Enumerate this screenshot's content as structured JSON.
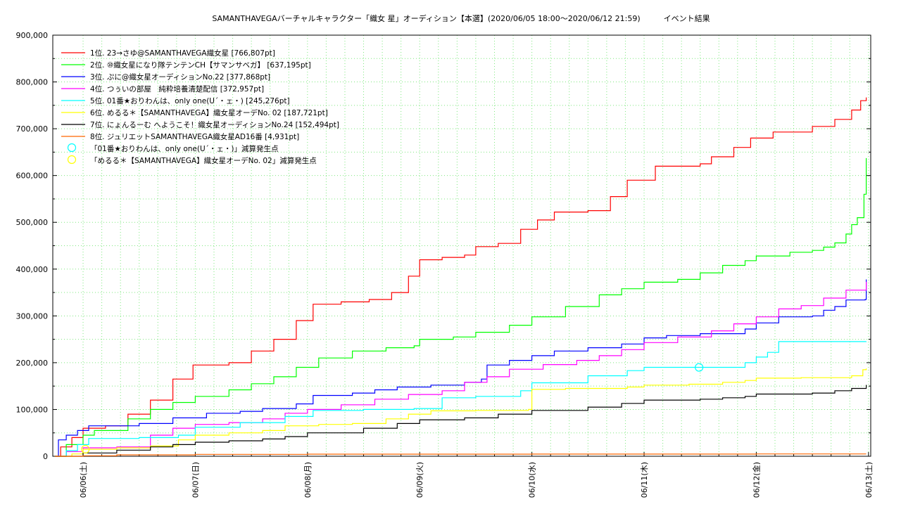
{
  "chart_data": {
    "type": "line",
    "title": "SAMANTHAVEGAバーチャルキャラクター「織女 星」オーディション【本選】(2020/06/05 18:00〜2020/06/12 21:59)　　　イベント結果",
    "xlabel": "",
    "ylabel": "",
    "x_unit": "days since 2020/06/05 00:00",
    "xlim": [
      0.73,
      8.02
    ],
    "ylim": [
      0,
      900000
    ],
    "y_ticks": [
      0,
      100000,
      200000,
      300000,
      400000,
      500000,
      600000,
      700000,
      800000,
      900000
    ],
    "y_tick_labels": [
      "0",
      "100,000",
      "200,000",
      "300,000",
      "400,000",
      "500,000",
      "600,000",
      "700,000",
      "800,000",
      "900,000"
    ],
    "x_ticks": [
      1,
      2,
      3,
      4,
      5,
      6,
      7,
      8
    ],
    "x_tick_labels": [
      "06/06(土)",
      "06/07(日)",
      "06/08(月)",
      "06/09(火)",
      "06/10(水)",
      "06/11(木)",
      "06/12(金)",
      "06/13(土)"
    ],
    "grid": true,
    "legend_position": "top-left",
    "series": [
      {
        "name": "1位. 23→さゆ@SAMANTHAVEGA織女星 [766,807pt]",
        "color": "#ff0000",
        "x": [
          0.75,
          0.8,
          0.9,
          1.0,
          1.2,
          1.4,
          1.6,
          1.8,
          1.98,
          2.3,
          2.5,
          2.7,
          2.9,
          3.05,
          3.3,
          3.55,
          3.75,
          3.9,
          4.0,
          4.2,
          4.4,
          4.5,
          4.7,
          4.9,
          5.05,
          5.2,
          5.5,
          5.7,
          5.85,
          6.1,
          6.5,
          6.6,
          6.8,
          6.95,
          7.15,
          7.4,
          7.5,
          7.7,
          7.85,
          7.93,
          7.98
        ],
        "y": [
          0,
          20000,
          40000,
          60000,
          65000,
          90000,
          120000,
          165000,
          195000,
          200000,
          225000,
          250000,
          290000,
          325000,
          330000,
          335000,
          350000,
          385000,
          420000,
          425000,
          430000,
          448000,
          455000,
          485000,
          505000,
          522000,
          525000,
          555000,
          590000,
          620000,
          625000,
          640000,
          660000,
          680000,
          693000,
          693000,
          705000,
          720000,
          740000,
          760000,
          766807
        ]
      },
      {
        "name": "2位. ⑩織女星になり隊テンテンCH【サマンサベガ】 [637,195pt]",
        "color": "#00ff00",
        "x": [
          0.75,
          0.85,
          1.0,
          1.1,
          1.4,
          1.6,
          1.8,
          2.0,
          2.3,
          2.5,
          2.7,
          2.9,
          3.1,
          3.4,
          3.7,
          3.95,
          4.0,
          4.3,
          4.5,
          4.8,
          5.0,
          5.3,
          5.6,
          5.8,
          6.0,
          6.3,
          6.5,
          6.7,
          6.9,
          7.0,
          7.3,
          7.5,
          7.6,
          7.7,
          7.8,
          7.85,
          7.9,
          7.96,
          7.98
        ],
        "y": [
          0,
          25000,
          45000,
          55000,
          80000,
          100000,
          115000,
          128000,
          142000,
          155000,
          170000,
          190000,
          210000,
          225000,
          232000,
          236000,
          250000,
          255000,
          265000,
          280000,
          298000,
          320000,
          345000,
          358000,
          372000,
          378000,
          392000,
          408000,
          418000,
          428000,
          436000,
          440000,
          447000,
          456000,
          475000,
          495000,
          510000,
          560000,
          637195
        ]
      },
      {
        "name": "3位. ぷに@織女星オーディションNo.22 [377,868pt]",
        "color": "#0000ff",
        "x": [
          0.75,
          0.78,
          0.85,
          0.95,
          1.05,
          1.5,
          1.8,
          2.1,
          2.4,
          2.6,
          2.9,
          3.05,
          3.4,
          3.6,
          3.8,
          4.1,
          4.4,
          4.55,
          4.6,
          4.8,
          5.0,
          5.2,
          5.5,
          5.8,
          6.0,
          6.2,
          6.5,
          6.9,
          7.0,
          7.2,
          7.5,
          7.6,
          7.7,
          7.8,
          7.97,
          7.98
        ],
        "y": [
          0,
          35000,
          45000,
          55000,
          65000,
          70000,
          82000,
          92000,
          96000,
          102000,
          112000,
          130000,
          135000,
          142000,
          148000,
          152000,
          158000,
          165000,
          195000,
          205000,
          215000,
          225000,
          232000,
          240000,
          253000,
          258000,
          262000,
          272000,
          285000,
          298000,
          300000,
          312000,
          320000,
          334000,
          335000,
          377868
        ]
      },
      {
        "name": "4位. つぅいの部屋　純粋培養清楚配信 [372,957pt]",
        "color": "#ff00ff",
        "x": [
          0.75,
          0.85,
          1.0,
          1.3,
          1.6,
          1.8,
          2.0,
          2.3,
          2.6,
          2.8,
          3.0,
          3.3,
          3.6,
          3.9,
          4.2,
          4.4,
          4.6,
          4.8,
          5.1,
          5.4,
          5.6,
          5.8,
          6.0,
          6.3,
          6.6,
          6.8,
          7.0,
          7.2,
          7.4,
          7.6,
          7.8,
          7.98
        ],
        "y": [
          0,
          10000,
          18000,
          20000,
          45000,
          60000,
          68000,
          72000,
          80000,
          92000,
          100000,
          110000,
          122000,
          132000,
          140000,
          158000,
          170000,
          186000,
          196000,
          205000,
          215000,
          228000,
          243000,
          255000,
          268000,
          283000,
          298000,
          315000,
          322000,
          338000,
          355000,
          372957
        ]
      },
      {
        "name": "5位. 01番★おりわんは、only one(U´・ェ・) [245,276pt]",
        "color": "#00ffff",
        "x": [
          0.75,
          0.85,
          0.95,
          1.05,
          1.5,
          1.85,
          2.0,
          2.4,
          2.8,
          3.05,
          3.5,
          3.95,
          4.2,
          4.5,
          4.9,
          5.0,
          5.5,
          5.85,
          6.0,
          6.3,
          6.5,
          6.7,
          6.9,
          7.0,
          7.1,
          7.2,
          7.98
        ],
        "y": [
          0,
          12000,
          25000,
          38000,
          40000,
          45000,
          62000,
          72000,
          85000,
          98000,
          100000,
          102000,
          125000,
          128000,
          140000,
          157000,
          172000,
          183000,
          190000,
          190000,
          190000,
          190000,
          200000,
          212000,
          222000,
          245000,
          245276
        ]
      },
      {
        "name": "6位. めるる＊【SAMANTHAVEGA】織女星オーデNo. 02 [187,721pt]",
        "color": "#ffff00",
        "x": [
          0.75,
          0.9,
          1.0,
          1.3,
          1.6,
          1.85,
          2.0,
          2.3,
          2.6,
          2.8,
          3.1,
          3.4,
          3.7,
          3.9,
          4.1,
          4.5,
          4.97,
          5.0,
          5.3,
          5.85,
          6.0,
          6.4,
          6.7,
          6.9,
          7.0,
          7.4,
          7.85,
          7.95,
          7.98
        ],
        "y": [
          0,
          5000,
          15000,
          18000,
          22000,
          35000,
          45000,
          50000,
          55000,
          65000,
          68000,
          70000,
          80000,
          90000,
          97000,
          98000,
          100000,
          143000,
          145000,
          148000,
          152000,
          154000,
          158000,
          162000,
          167000,
          168000,
          172000,
          185000,
          187721
        ]
      },
      {
        "name": "7位. にょんるーむ へようこそ！織女星オーディションNo.24 [152,494pt]",
        "color": "#000000",
        "x": [
          0.75,
          1.0,
          1.3,
          1.6,
          1.8,
          2.0,
          2.3,
          2.6,
          2.8,
          3.0,
          3.5,
          3.8,
          4.0,
          4.4,
          4.7,
          5.0,
          5.5,
          5.8,
          6.0,
          6.5,
          6.7,
          6.9,
          7.0,
          7.5,
          7.7,
          7.85,
          7.98
        ],
        "y": [
          0,
          7000,
          13000,
          20000,
          25000,
          30000,
          33000,
          37000,
          42000,
          50000,
          60000,
          70000,
          78000,
          82000,
          90000,
          98000,
          105000,
          113000,
          120000,
          122000,
          125000,
          128000,
          133000,
          135000,
          140000,
          145000,
          152494
        ]
      },
      {
        "name": "8位. ジュリエットSAMANTHAVEGA織女星AD16番 [4,931pt]",
        "color": "#ff6600",
        "x": [
          0.75,
          1.0,
          1.3,
          2.0,
          3.0,
          5.0,
          7.0,
          7.98
        ],
        "y": [
          0,
          1000,
          3000,
          4000,
          4500,
          4700,
          4900,
          4931
        ]
      }
    ],
    "markers": [
      {
        "name": "「01番★おりわんは、only one(U´・ェ・)」減算発生点",
        "color": "#00ffff",
        "x": 6.49,
        "y": 190000
      },
      {
        "name": "「めるる＊【SAMANTHAVEGA】織女星オーデNo. 02」減算発生点",
        "color": "#ffff00",
        "x": 1.02,
        "y": 15000
      }
    ]
  }
}
